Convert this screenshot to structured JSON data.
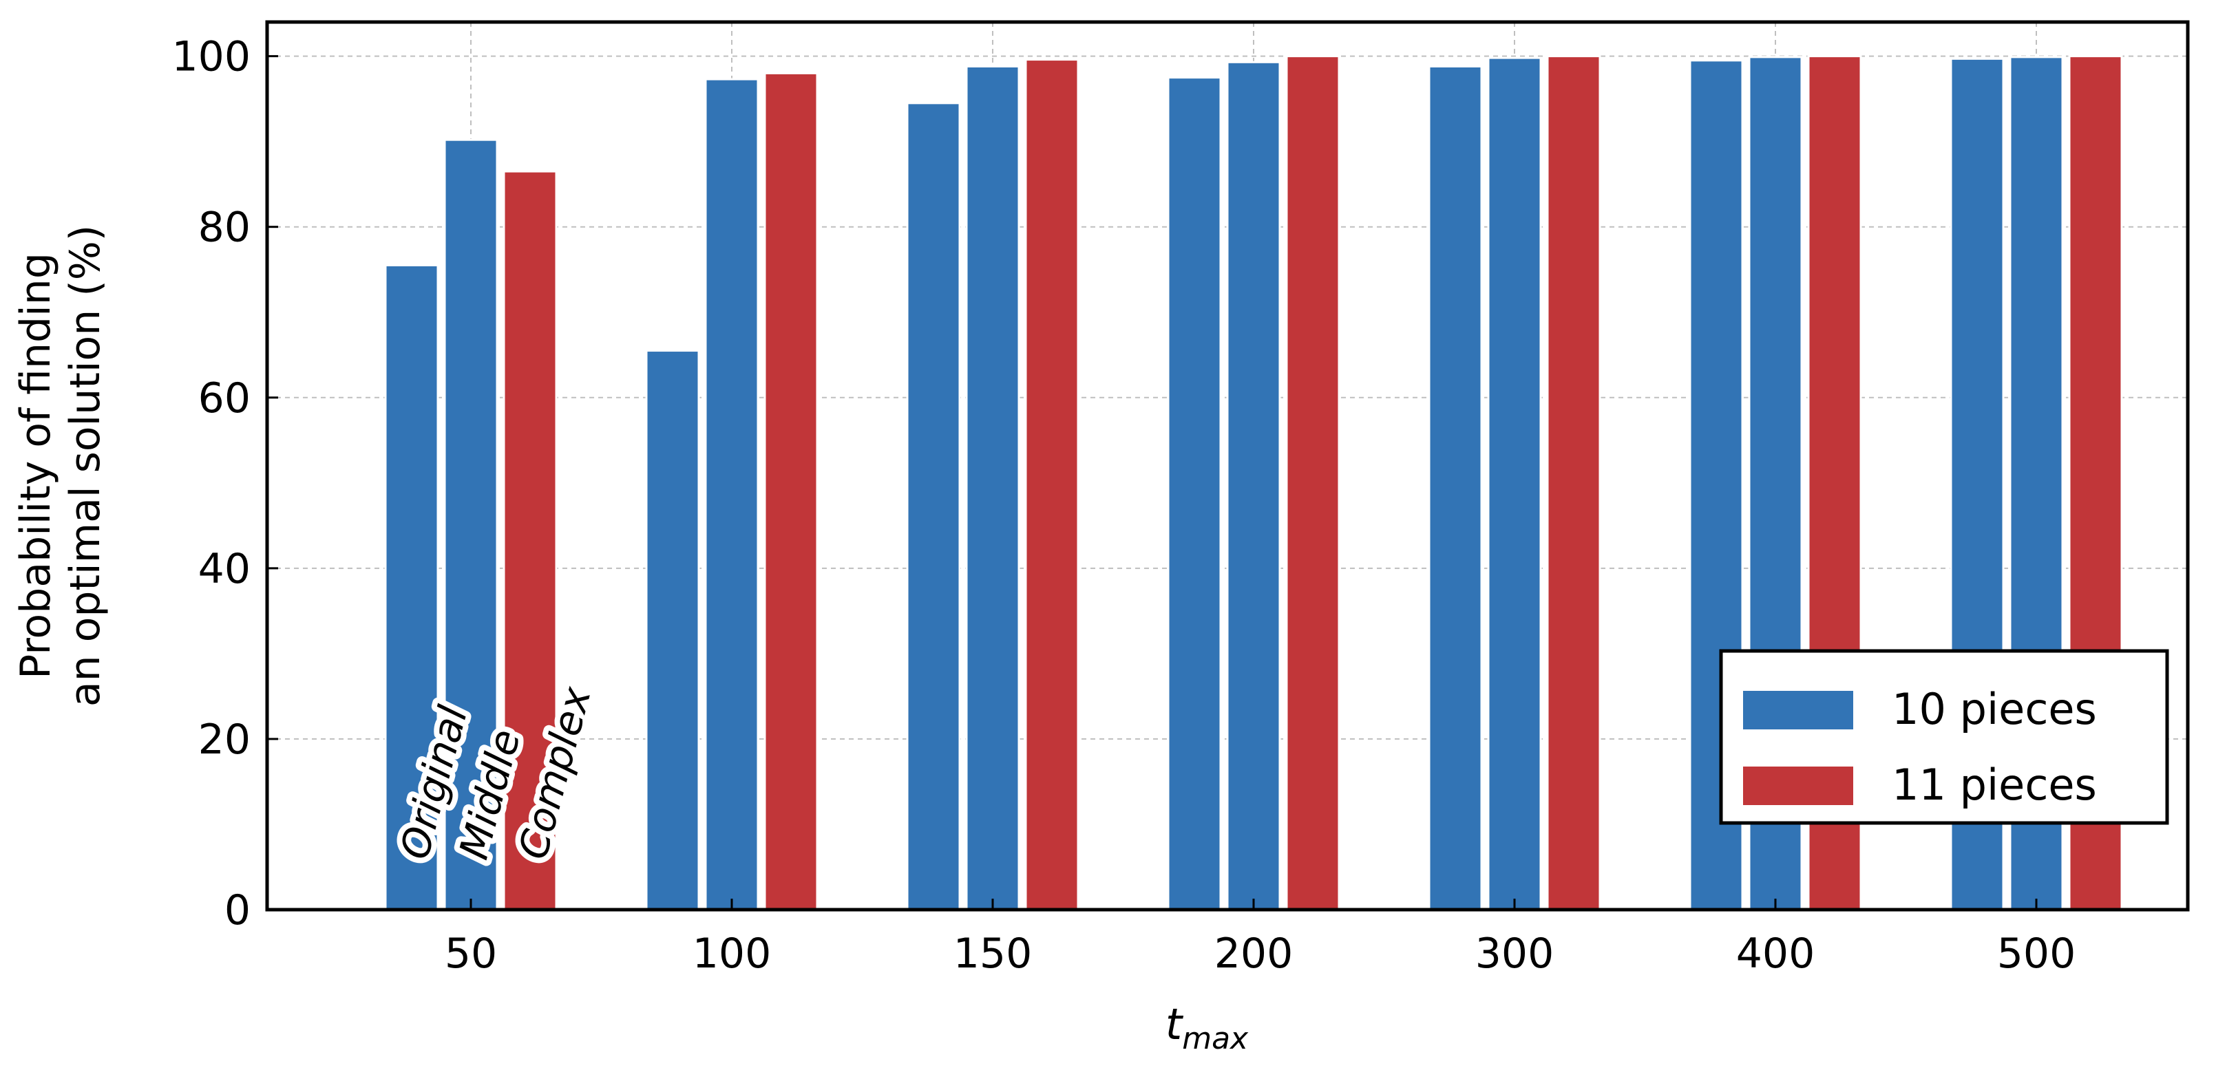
{
  "chart_data": {
    "type": "bar",
    "title": "",
    "xlabel": "t",
    "xlabel_subscript": "max",
    "ylabel_lines": [
      "Probability of finding",
      "an optimal solution (%)"
    ],
    "categories": [
      "50",
      "100",
      "150",
      "200",
      "300",
      "400",
      "500"
    ],
    "ylim": [
      0,
      104
    ],
    "yticks": [
      0,
      20,
      40,
      60,
      80,
      100
    ],
    "grid": true,
    "legend_position": "lower-right",
    "bar_labels": [
      "Original",
      "Middle",
      "Complex"
    ],
    "series": [
      {
        "name": "Original",
        "legend_group": "10 pieces",
        "color": "#3274b5",
        "values": [
          75.5,
          65.5,
          94.5,
          97.5,
          98.8,
          99.5,
          99.7
        ]
      },
      {
        "name": "Middle",
        "legend_group": "10 pieces",
        "color": "#3274b5",
        "values": [
          90.2,
          97.3,
          98.8,
          99.3,
          99.8,
          99.9,
          99.9
        ]
      },
      {
        "name": "Complex",
        "legend_group": "11 pieces",
        "color": "#c13639",
        "values": [
          86.5,
          98.0,
          99.6,
          100.0,
          100.0,
          100.0,
          100.0
        ]
      }
    ],
    "legend": [
      {
        "label": "10 pieces",
        "color": "#3274b5"
      },
      {
        "label": "11 pieces",
        "color": "#c13639"
      }
    ]
  }
}
